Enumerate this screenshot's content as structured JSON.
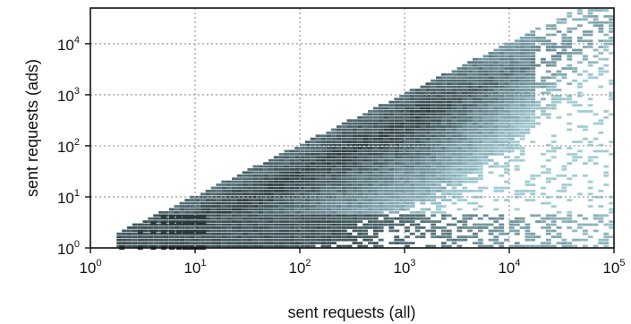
{
  "chart_data": {
    "type": "heatmap",
    "title": "",
    "xlabel": "sent requests (all)",
    "ylabel": "sent requests (ads)",
    "xscale": "log",
    "yscale": "log",
    "xlim": [
      1,
      100000
    ],
    "ylim": [
      1,
      50000
    ],
    "grid": true,
    "x_tick_labels": [
      {
        "base": "10",
        "exp": "0",
        "value": 1
      },
      {
        "base": "10",
        "exp": "1",
        "value": 10
      },
      {
        "base": "10",
        "exp": "2",
        "value": 100
      },
      {
        "base": "10",
        "exp": "3",
        "value": 1000
      },
      {
        "base": "10",
        "exp": "4",
        "value": 10000
      },
      {
        "base": "10",
        "exp": "5",
        "value": 100000
      }
    ],
    "y_tick_labels": [
      {
        "base": "10",
        "exp": "0",
        "value": 1
      },
      {
        "base": "10",
        "exp": "1",
        "value": 10
      },
      {
        "base": "10",
        "exp": "2",
        "value": 100
      },
      {
        "base": "10",
        "exp": "3",
        "value": 1000
      },
      {
        "base": "10",
        "exp": "4",
        "value": 10000
      }
    ],
    "colors": {
      "low_density": "#a9d3db",
      "mid_density": "#6e9099",
      "high_density": "#2a3a3e",
      "grid": "#9a9a9a",
      "frame": "#111111"
    },
    "density_note_values": {
      "upper_bound_ratio": 1.0,
      "ridge_ratio": 0.25,
      "constant_rows": [
        1,
        2,
        3,
        4
      ]
    }
  }
}
